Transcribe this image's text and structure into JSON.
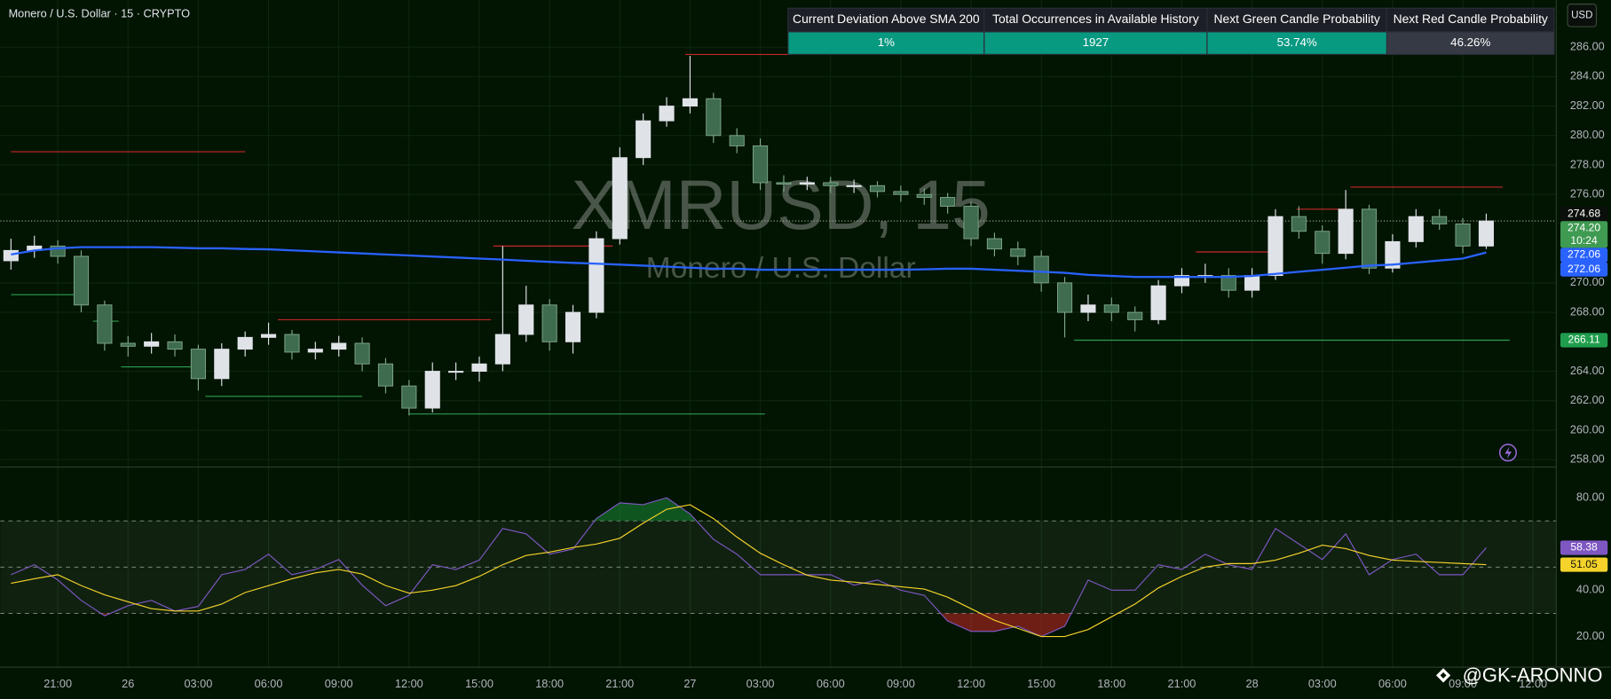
{
  "header": {
    "title": "Monero / U.S. Dollar · 15 · CRYPTO",
    "currency_button": "USD"
  },
  "watermark": {
    "symbol": "XMRUSD, 15",
    "name": "Monero / U.S. Dollar"
  },
  "table": {
    "headers": [
      "Current Deviation Above SMA 200",
      "Total Occurrences in Available History",
      "Next Green Candle Probability",
      "Next Red Candle Probability"
    ],
    "rows": [
      [
        "1%",
        "1927",
        "53.74%",
        "46.26%"
      ]
    ]
  },
  "signature": "@GK-ARONNO",
  "chart_data": [
    {
      "type": "candlestick",
      "categories": [
        null,
        null,
        "21:00",
        null,
        null,
        "26",
        null,
        null,
        "03:00",
        null,
        null,
        "06:00",
        null,
        null,
        "09:00",
        null,
        null,
        "12:00",
        null,
        null,
        "15:00",
        null,
        null,
        "18:00",
        null,
        null,
        "21:00",
        null,
        null,
        "27",
        null,
        null,
        "03:00",
        null,
        null,
        "06:00",
        null,
        null,
        "09:00",
        null,
        null,
        "12:00",
        null,
        null,
        "15:00",
        null,
        null,
        "18:00",
        null,
        null,
        "21:00",
        null,
        null,
        "28",
        null,
        null,
        "03:00",
        null,
        null,
        "06:00",
        null,
        null,
        "09:00",
        null,
        null,
        "12:00"
      ],
      "open": [
        271.5,
        272.2,
        272.5,
        271.8,
        268.5,
        265.9,
        265.7,
        266.0,
        265.5,
        263.5,
        265.5,
        266.3,
        266.5,
        265.3,
        265.5,
        265.9,
        264.5,
        263.0,
        261.5,
        264.0,
        264.0,
        264.5,
        266.5,
        268.5,
        266.0,
        268.0,
        273.0,
        278.5,
        281.0,
        282.0,
        282.5,
        280.0,
        279.3,
        276.8,
        276.7,
        276.8,
        276.6,
        276.6,
        276.2,
        276.0,
        275.8,
        275.2,
        273.0,
        272.3,
        271.8,
        270.0,
        268.0,
        268.5,
        268.0,
        267.5,
        269.8,
        270.5,
        270.5,
        269.5,
        270.5,
        274.5,
        273.5,
        272.0,
        275.0,
        271.0,
        272.8,
        274.5,
        274.0,
        272.5,
        null,
        null
      ],
      "high": [
        273.0,
        273.2,
        272.9,
        272.2,
        268.8,
        266.4,
        266.6,
        266.5,
        265.8,
        265.9,
        266.7,
        267.3,
        266.8,
        266.0,
        266.4,
        266.3,
        264.9,
        263.4,
        264.6,
        264.6,
        265.0,
        272.5,
        269.8,
        268.9,
        268.5,
        273.5,
        279.2,
        281.5,
        282.6,
        285.4,
        282.9,
        280.5,
        279.8,
        277.3,
        277.2,
        277.2,
        277.0,
        276.9,
        276.6,
        276.4,
        276.1,
        275.5,
        273.4,
        272.8,
        272.2,
        270.4,
        269.2,
        269.0,
        268.4,
        270.2,
        271.0,
        271.3,
        271.0,
        271.0,
        275.0,
        275.2,
        273.9,
        276.3,
        275.3,
        273.3,
        275.0,
        275.0,
        274.4,
        274.7,
        null,
        null
      ],
      "low": [
        270.9,
        271.7,
        271.3,
        268.0,
        265.4,
        265.0,
        265.2,
        265.0,
        262.7,
        263.0,
        265.0,
        265.8,
        264.8,
        264.8,
        265.0,
        264.0,
        262.5,
        261.0,
        261.2,
        263.4,
        263.3,
        264.0,
        266.0,
        265.4,
        265.2,
        267.6,
        272.6,
        278.0,
        280.6,
        281.5,
        279.5,
        278.8,
        276.3,
        276.2,
        276.3,
        276.1,
        276.1,
        275.8,
        275.5,
        275.3,
        274.7,
        272.5,
        271.8,
        271.2,
        269.4,
        266.3,
        267.4,
        267.4,
        266.7,
        267.2,
        269.3,
        270.0,
        269.0,
        269.0,
        270.2,
        273.0,
        271.3,
        271.6,
        270.6,
        270.7,
        272.4,
        273.6,
        272.0,
        272.3,
        null,
        null
      ],
      "close": [
        272.2,
        272.5,
        271.8,
        268.5,
        265.9,
        265.7,
        266.0,
        265.5,
        263.5,
        265.5,
        266.3,
        266.5,
        265.3,
        265.5,
        265.9,
        264.5,
        263.0,
        261.5,
        264.0,
        264.0,
        264.5,
        266.5,
        268.5,
        266.0,
        268.0,
        273.0,
        278.5,
        281.0,
        282.0,
        282.5,
        280.0,
        279.3,
        276.8,
        276.7,
        276.8,
        276.6,
        276.6,
        276.2,
        276.0,
        275.8,
        275.2,
        273.0,
        272.3,
        271.8,
        270.0,
        268.0,
        268.5,
        268.0,
        267.5,
        269.8,
        270.5,
        270.5,
        269.5,
        270.5,
        274.5,
        273.5,
        272.0,
        275.0,
        271.0,
        272.8,
        274.5,
        274.0,
        272.5,
        274.2,
        null,
        null
      ],
      "up_color": "#dfe3e8",
      "down_color": "#3f6b4f",
      "sma": {
        "color": "#2962ff",
        "values": [
          271.93,
          272.2,
          272.35,
          272.42,
          272.42,
          272.42,
          272.42,
          272.39,
          272.35,
          272.35,
          272.3,
          272.28,
          272.21,
          272.14,
          272.07,
          272.0,
          271.93,
          271.86,
          271.79,
          271.72,
          271.65,
          271.58,
          271.5,
          271.43,
          271.36,
          271.3,
          271.24,
          271.17,
          271.1,
          271.03,
          270.96,
          270.96,
          270.89,
          270.89,
          270.89,
          270.89,
          270.89,
          270.89,
          270.89,
          270.92,
          270.96,
          270.96,
          270.89,
          270.82,
          270.75,
          270.68,
          270.54,
          270.47,
          270.4,
          270.4,
          270.4,
          270.4,
          270.4,
          270.47,
          270.61,
          270.75,
          270.89,
          271.03,
          271.17,
          271.24,
          271.38,
          271.52,
          271.65,
          272.06,
          null,
          null
        ]
      },
      "levels": [
        {
          "value": 278.9,
          "from": 0,
          "to": 10,
          "color": "#c62828"
        },
        {
          "value": 269.2,
          "from": 0,
          "to": 3,
          "color": "#2e9e4f"
        },
        {
          "value": 267.4,
          "from": 3.5,
          "to": 4.6,
          "color": "#2e9e4f"
        },
        {
          "value": 264.3,
          "from": 4.7,
          "to": 8.3,
          "color": "#2e9e4f"
        },
        {
          "value": 262.3,
          "from": 8.3,
          "to": 15,
          "color": "#2e9e4f"
        },
        {
          "value": 267.5,
          "from": 11.4,
          "to": 20.5,
          "color": "#c62828"
        },
        {
          "value": 261.1,
          "from": 17,
          "to": 32.2,
          "color": "#2e9e4f"
        },
        {
          "value": 272.5,
          "from": 20.6,
          "to": 25.7,
          "color": "#c62828"
        },
        {
          "value": 285.5,
          "from": 28.8,
          "to": 33.3,
          "color": "#c62828"
        },
        {
          "value": 266.11,
          "from": 45.4,
          "to": 64,
          "color": "#2e9e4f"
        },
        {
          "value": 272.1,
          "from": 50.6,
          "to": 54,
          "color": "#c62828"
        },
        {
          "value": 275.0,
          "from": 54.9,
          "to": 57,
          "color": "#c62828"
        },
        {
          "value": 276.5,
          "from": 57.2,
          "to": 63.7,
          "color": "#c62828"
        }
      ],
      "ylim": [
        257.5,
        289.2
      ],
      "yticks": [
        {
          "value": 286,
          "label": "286.00"
        },
        {
          "value": 284,
          "label": "284.00"
        },
        {
          "value": 282,
          "label": "282.00"
        },
        {
          "value": 280,
          "label": "280.00"
        },
        {
          "value": 278,
          "label": "278.00"
        },
        {
          "value": 276,
          "label": "276.00"
        },
        {
          "value": 270,
          "label": "270.00"
        },
        {
          "value": 268,
          "label": "268.00"
        },
        {
          "value": 264,
          "label": "264.00"
        },
        {
          "value": 262,
          "label": "262.00"
        },
        {
          "value": 260,
          "label": "260.00"
        },
        {
          "value": 258,
          "label": "258.00"
        }
      ],
      "price_tags": [
        {
          "value": 274.68,
          "label": "274.68",
          "color": "#0b0f0b",
          "text_color": "#ffffff"
        },
        {
          "value": 274.2,
          "label": "274.20",
          "countdown": "10:24",
          "color": "#3f9a52",
          "text_color": "#ffffff"
        },
        {
          "value": 272.06,
          "label": "272.06",
          "color": "#2962ff",
          "text_color": "#ffffff"
        },
        {
          "value": 272.06,
          "label": "272.06",
          "color": "#2962ff",
          "text_color": "#ffffff"
        },
        {
          "value": 266.11,
          "label": "266.11",
          "color": "#1f9d4c",
          "text_color": "#ffffff"
        }
      ],
      "grid": true
    },
    {
      "type": "line",
      "series": [
        {
          "color": "#7e57c2",
          "values": [
            46.7,
            51,
            44.4,
            35.6,
            28.9,
            33.3,
            35.6,
            31,
            33,
            46.7,
            49,
            55.6,
            46.7,
            49,
            53.3,
            42.2,
            33.3,
            37.8,
            51,
            49,
            53,
            66.7,
            64.4,
            55.6,
            57.8,
            71,
            77.8,
            77,
            80,
            73,
            62,
            55.6,
            46.7,
            46.7,
            46.7,
            46.7,
            42.2,
            44.4,
            40,
            37.8,
            26.7,
            22.2,
            22.2,
            24.4,
            20,
            24.4,
            44.4,
            40,
            40,
            51,
            49,
            55.6,
            51,
            49,
            66.7,
            60,
            53.3,
            64.4,
            46.7,
            53.3,
            55.6,
            46.7,
            46.7,
            58.38,
            null,
            null
          ]
        },
        {
          "color": "#f5d32a",
          "values": [
            43,
            45,
            46.7,
            42,
            38,
            35,
            32,
            31,
            31,
            34,
            39,
            42,
            45,
            47.5,
            49,
            47,
            42,
            38.7,
            40,
            42,
            46,
            51,
            55,
            56.5,
            58.5,
            60,
            62.5,
            69,
            75,
            77,
            71,
            63,
            56,
            51,
            46.5,
            44.4,
            43.5,
            42.5,
            41.5,
            40.5,
            37,
            32,
            27,
            23.5,
            20,
            20,
            23,
            28.5,
            34,
            41,
            46,
            50,
            51.5,
            51.5,
            53,
            56,
            59.5,
            58,
            55,
            53,
            52.5,
            52,
            51.5,
            51.05,
            null,
            null
          ]
        }
      ],
      "bands": [
        70,
        50,
        30
      ],
      "ylim": [
        6.7,
        93.3
      ],
      "yticks": [
        {
          "value": 80,
          "label": "80.00"
        },
        {
          "value": 40,
          "label": "40.00"
        },
        {
          "value": 20,
          "label": "20.00"
        }
      ],
      "tags": [
        {
          "value": 58.38,
          "label": "58.38",
          "color": "#7e57c2",
          "text_color": "#ffffff"
        },
        {
          "value": 51.05,
          "label": "51.05",
          "color": "#f5d32a",
          "text_color": "#111111"
        }
      ]
    }
  ]
}
